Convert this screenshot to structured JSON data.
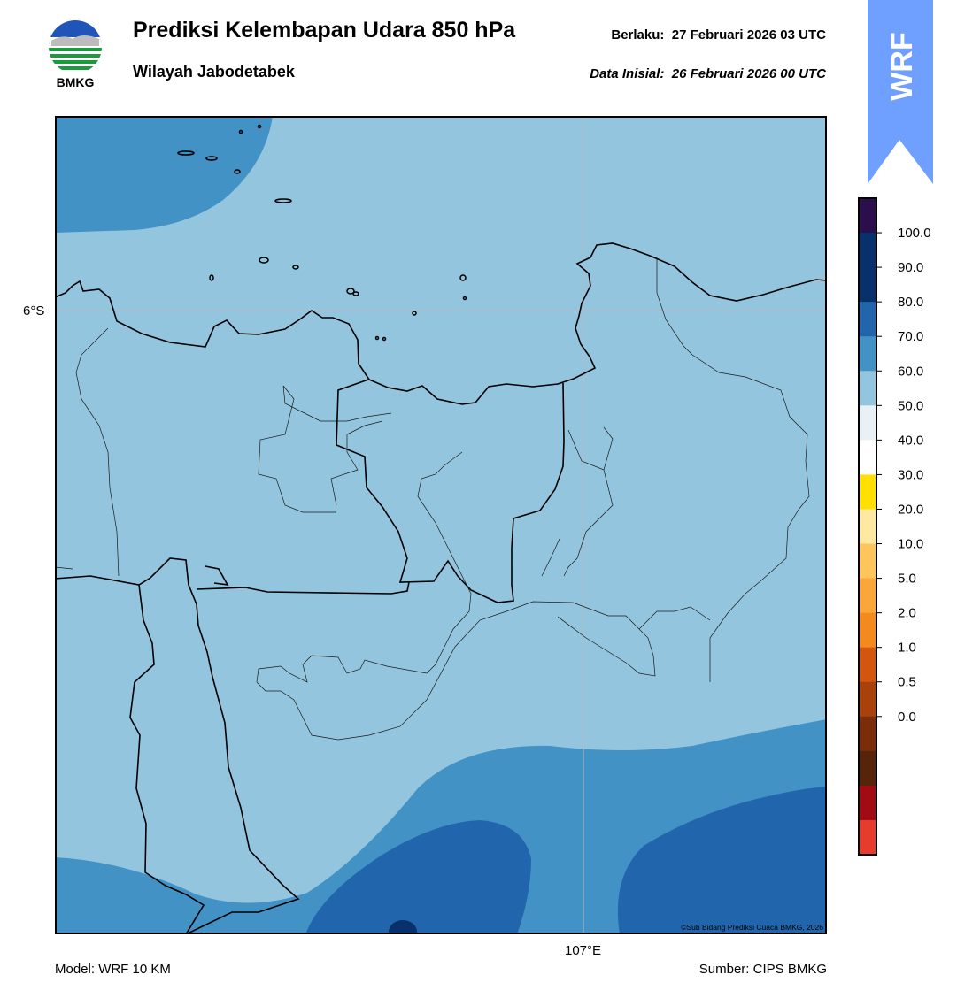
{
  "header": {
    "logo_text": "BMKG",
    "title": "Prediksi Kelembapan Udara 850 hPa",
    "subtitle": "Wilayah Jabodetabek",
    "valid_label": "Berlaku:",
    "valid_time": "27 Februari 2026 03 UTC",
    "init_label": "Data Inisial:",
    "init_time": "26 Februari 2026 00 UTC"
  },
  "badge": {
    "text": "WRF",
    "color": "#6fa0ff"
  },
  "map": {
    "lat_label": "6°S",
    "lon_label": "107°E",
    "credit": "©Sub Bidang Prediksi Cuaca BMKG, 2026",
    "base_color": "#94c5df",
    "band_colors": {
      "70-80": "#4292c6",
      "80-90": "#2166ac",
      "90-100": "#08306b"
    }
  },
  "colorbar": {
    "labels": [
      "100.0",
      "90.0",
      "80.0",
      "70.0",
      "60.0",
      "50.0",
      "40.0",
      "30.0",
      "20.0",
      "10.0",
      "5.0",
      "2.0",
      "1.0",
      "0.5",
      "0.0"
    ],
    "colors": [
      "#2a0f4c",
      "#08306b",
      "#08306b",
      "#2166ac",
      "#4292c6",
      "#94c5df",
      "#e9f0f6",
      "#ffffff",
      "#ffe000",
      "#fee9a0",
      "#fdc55a",
      "#fba63a",
      "#f38a1e",
      "#d3560f",
      "#a8420a",
      "#7a2d08",
      "#56240a",
      "#a10c14",
      "#e63c2e"
    ]
  },
  "footer": {
    "model": "Model: WRF 10 KM",
    "source": "Sumber: CIPS BMKG"
  }
}
